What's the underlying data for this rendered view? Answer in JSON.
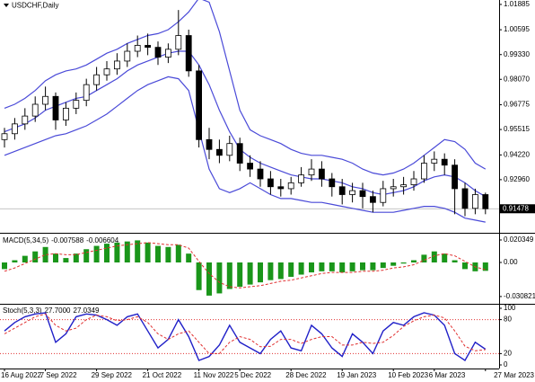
{
  "chart_data": [
    {
      "type": "candlestick",
      "title": "USDCHF,Daily",
      "categories": [
        "16 Aug 2022",
        null,
        null,
        null,
        "7 Sep 2022",
        null,
        null,
        null,
        null,
        "29 Sep 2022",
        null,
        null,
        null,
        null,
        "21 Oct 2022",
        null,
        null,
        null,
        null,
        "11 Nov 2022",
        null,
        null,
        null,
        "5 Dec 2022",
        null,
        null,
        null,
        null,
        "28 Dec 2022",
        null,
        null,
        null,
        null,
        "19 Jan 2023",
        null,
        null,
        null,
        null,
        "10 Feb 2023",
        null,
        null,
        null,
        "6 Mar 2023",
        null,
        null,
        null,
        null,
        "27 Mar 2023"
      ],
      "open": [
        0.95,
        0.953,
        0.958,
        0.962,
        0.968,
        0.972,
        0.96,
        0.966,
        0.97,
        0.978,
        0.983,
        0.986,
        0.99,
        0.995,
        0.998,
        0.997,
        0.992,
        0.996,
        1.003,
        0.985,
        0.95,
        0.945,
        0.942,
        0.948,
        0.938,
        0.935,
        0.93,
        0.926,
        0.925,
        0.928,
        0.932,
        0.935,
        0.93,
        0.926,
        0.922,
        0.924,
        0.921,
        0.918,
        0.925,
        0.926,
        0.927,
        0.93,
        0.938,
        0.94,
        0.937,
        0.925,
        0.915,
        0.922
      ],
      "high": [
        0.956,
        0.961,
        0.966,
        0.972,
        0.977,
        0.974,
        0.969,
        0.974,
        0.981,
        0.987,
        0.99,
        0.994,
        0.999,
        1.003,
        1.004,
        1.0,
        0.999,
        1.016,
        1.006,
        0.988,
        0.956,
        0.95,
        0.952,
        0.951,
        0.942,
        0.939,
        0.934,
        0.93,
        0.931,
        0.936,
        0.94,
        0.939,
        0.933,
        0.93,
        0.928,
        0.928,
        0.924,
        0.929,
        0.93,
        0.931,
        0.934,
        0.942,
        0.944,
        0.943,
        0.94,
        0.928,
        0.925,
        0.923
      ],
      "low": [
        0.946,
        0.95,
        0.955,
        0.959,
        0.965,
        0.955,
        0.957,
        0.963,
        0.967,
        0.975,
        0.98,
        0.983,
        0.987,
        0.992,
        0.993,
        0.988,
        0.989,
        0.993,
        0.982,
        0.946,
        0.94,
        0.938,
        0.939,
        0.934,
        0.931,
        0.926,
        0.922,
        0.921,
        0.922,
        0.926,
        0.929,
        0.926,
        0.921,
        0.917,
        0.918,
        0.915,
        0.913,
        0.916,
        0.921,
        0.922,
        0.924,
        0.928,
        0.934,
        0.932,
        0.912,
        0.911,
        0.912,
        0.912
      ],
      "close": [
        0.953,
        0.958,
        0.962,
        0.968,
        0.972,
        0.96,
        0.966,
        0.97,
        0.978,
        0.983,
        0.986,
        0.99,
        0.995,
        0.998,
        0.997,
        0.992,
        0.996,
        1.003,
        0.985,
        0.95,
        0.945,
        0.942,
        0.948,
        0.938,
        0.935,
        0.93,
        0.926,
        0.925,
        0.928,
        0.932,
        0.935,
        0.93,
        0.926,
        0.922,
        0.924,
        0.921,
        0.918,
        0.925,
        0.926,
        0.927,
        0.93,
        0.938,
        0.94,
        0.937,
        0.925,
        0.915,
        0.922,
        0.91478
      ],
      "series": [
        {
          "color": "#4a4ad8",
          "values": [
            0.966,
            0.968,
            0.971,
            0.975,
            0.98,
            0.983,
            0.985,
            0.986,
            0.988,
            0.991,
            0.994,
            0.996,
            0.999,
            1.001,
            1.003,
            1.004,
            1.006,
            1.01,
            1.015,
            1.022,
            1.02,
            1.005,
            0.985,
            0.965,
            0.955,
            0.952,
            0.95,
            0.948,
            0.945,
            0.943,
            0.942,
            0.942,
            0.941,
            0.94,
            0.938,
            0.935,
            0.933,
            0.932,
            0.933,
            0.935,
            0.938,
            0.942,
            0.946,
            0.95,
            0.949,
            0.945,
            0.938,
            0.935
          ]
        },
        {
          "color": "#4a4ad8",
          "values": [
            0.954,
            0.956,
            0.958,
            0.961,
            0.965,
            0.967,
            0.969,
            0.971,
            0.972,
            0.975,
            0.978,
            0.981,
            0.985,
            0.988,
            0.99,
            0.992,
            0.994,
            0.995,
            0.995,
            0.988,
            0.978,
            0.965,
            0.954,
            0.945,
            0.941,
            0.938,
            0.936,
            0.934,
            0.932,
            0.931,
            0.93,
            0.93,
            0.929,
            0.928,
            0.926,
            0.925,
            0.923,
            0.922,
            0.923,
            0.924,
            0.926,
            0.929,
            0.931,
            0.932,
            0.931,
            0.928,
            0.924,
            0.921
          ]
        },
        {
          "color": "#4a4ad8",
          "values": [
            0.942,
            0.944,
            0.946,
            0.948,
            0.95,
            0.952,
            0.953,
            0.955,
            0.957,
            0.96,
            0.963,
            0.967,
            0.971,
            0.975,
            0.978,
            0.98,
            0.982,
            0.981,
            0.975,
            0.955,
            0.935,
            0.925,
            0.923,
            0.925,
            0.928,
            0.925,
            0.922,
            0.92,
            0.92,
            0.919,
            0.918,
            0.918,
            0.917,
            0.916,
            0.915,
            0.914,
            0.913,
            0.913,
            0.913,
            0.914,
            0.915,
            0.916,
            0.916,
            0.915,
            0.913,
            0.91,
            0.909,
            0.908
          ]
        }
      ],
      "last_price": 0.91478,
      "ylim": [
        0.903,
        1.0211
      ],
      "yticks": [
        1.01885,
        1.00595,
        {
          "value": 0.9933,
          "label": "0.99330"
        },
        {
          "value": 0.9807,
          "label": "0.98070"
        },
        0.96775,
        0.95515,
        {
          "value": 0.9422,
          "label": "0.94220"
        },
        {
          "value": 0.9296,
          "label": "0.92960"
        }
      ]
    },
    {
      "type": "macd",
      "title": "MACD(5,34,5)",
      "readout": [
        -0.007588,
        -0.006604
      ],
      "values": [
        -0.006,
        0.002,
        0.006,
        0.01,
        0.014,
        0.008,
        0.004,
        0.008,
        0.012,
        0.015,
        0.017,
        0.018,
        0.019,
        0.02,
        0.018,
        0.015,
        0.014,
        0.016,
        0.008,
        -0.025,
        -0.03,
        -0.028,
        -0.024,
        -0.022,
        -0.02,
        -0.018,
        -0.016,
        -0.015,
        -0.013,
        -0.011,
        -0.009,
        -0.008,
        -0.008,
        -0.009,
        -0.008,
        -0.007,
        -0.007,
        -0.005,
        -0.003,
        -0.001,
        0.002,
        0.007,
        0.01,
        0.008,
        0.002,
        -0.006,
        -0.008,
        -0.007588
      ],
      "color": "#1a961a",
      "signal": [
        -0.008,
        -0.005,
        -0.001,
        0.003,
        0.007,
        0.008,
        0.007,
        0.007,
        0.009,
        0.011,
        0.013,
        0.015,
        0.016,
        0.017,
        0.018,
        0.017,
        0.016,
        0.016,
        0.013,
        0.001,
        -0.01,
        -0.018,
        -0.022,
        -0.023,
        -0.022,
        -0.021,
        -0.019,
        -0.017,
        -0.016,
        -0.014,
        -0.012,
        -0.01,
        -0.009,
        -0.009,
        -0.009,
        -0.008,
        -0.008,
        -0.007,
        -0.005,
        -0.004,
        -0.002,
        0.002,
        0.006,
        0.008,
        0.006,
        0.001,
        -0.004,
        -0.006604
      ],
      "signal_color": "#e03030",
      "ylim": [
        -0.0366,
        0.0244
      ],
      "yticks": [
        0.020349,
        {
          "value": 0,
          "label": "0.00"
        },
        -0.030821
      ]
    },
    {
      "type": "stochastic",
      "title": "Stoch(5,3,3)",
      "readout": [
        {
          "value": 27.7,
          "label": "27.7000"
        },
        27.0349
      ],
      "series": [
        {
          "color": "#2020c8",
          "values": [
            60,
            75,
            85,
            90,
            92,
            40,
            55,
            85,
            90,
            88,
            80,
            70,
            85,
            90,
            60,
            30,
            45,
            80,
            50,
            8,
            15,
            35,
            70,
            40,
            30,
            20,
            45,
            60,
            30,
            25,
            70,
            55,
            30,
            15,
            55,
            40,
            20,
            60,
            75,
            70,
            85,
            92,
            88,
            70,
            20,
            8,
            40,
            27.7
          ]
        },
        {
          "color": "#e03030",
          "values": [
            55,
            65,
            75,
            85,
            90,
            70,
            60,
            65,
            80,
            88,
            85,
            78,
            80,
            85,
            75,
            55,
            45,
            55,
            60,
            40,
            20,
            20,
            40,
            50,
            45,
            32,
            33,
            45,
            45,
            38,
            45,
            50,
            50,
            35,
            35,
            40,
            38,
            40,
            52,
            68,
            78,
            85,
            88,
            83,
            60,
            33,
            25,
            27.0349
          ]
        }
      ],
      "levels": [
        80,
        20
      ],
      "ylim": [
        0,
        100
      ],
      "yticks": [
        100,
        80,
        20,
        0
      ]
    }
  ]
}
